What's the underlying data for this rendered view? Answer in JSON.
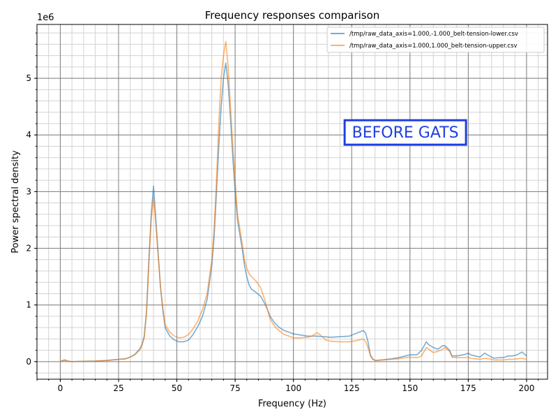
{
  "chart_data": {
    "type": "line",
    "title": "Frequency responses comparison",
    "xlabel": "Frequency (Hz)",
    "ylabel": "Power spectral density",
    "y_offset_label": "1e6",
    "xlim": [
      -10,
      209
    ],
    "ylim": [
      -0.31,
      5.95
    ],
    "y_scale": 1000000,
    "xticks": [
      0,
      25,
      50,
      75,
      100,
      125,
      150,
      175,
      200
    ],
    "yticks": [
      0,
      1,
      2,
      3,
      4,
      5
    ],
    "x_minor_step": 5,
    "y_minor_step": 0.2,
    "grid": true,
    "legend_position": "top-right",
    "annotation": {
      "text": "BEFORE GATS",
      "x": 148,
      "y": 4.05,
      "color": "#1f3fe0"
    },
    "series": [
      {
        "name": "/tmp/raw_data_axis=1.000,-1.000_belt-tension-lower.csv",
        "color": "#1f77b4",
        "x": [
          0,
          1,
          2,
          3,
          5,
          10,
          15,
          20,
          25,
          28,
          30,
          32,
          34,
          35,
          36,
          37,
          38,
          39,
          40,
          41,
          42,
          43,
          44,
          45,
          47,
          49,
          51,
          53,
          55,
          57,
          59,
          61,
          63,
          65,
          66,
          67,
          68,
          69,
          70,
          71,
          72,
          73,
          74,
          75,
          76,
          78,
          79,
          80,
          81,
          82,
          84,
          86,
          88,
          90,
          92,
          94,
          96,
          98,
          100,
          103,
          106,
          110,
          113,
          116,
          120,
          124,
          127,
          130,
          131,
          132,
          133,
          134,
          135,
          138,
          142,
          145,
          148,
          150,
          153,
          155,
          157,
          158,
          160,
          162,
          164,
          165,
          167,
          168,
          170,
          173,
          175,
          176,
          178,
          180,
          182,
          184,
          186,
          188,
          190,
          192,
          194,
          196,
          198,
          200
        ],
        "y": [
          0,
          0.02,
          0.03,
          0.01,
          0,
          0.005,
          0.01,
          0.02,
          0.04,
          0.05,
          0.08,
          0.13,
          0.22,
          0.3,
          0.45,
          0.9,
          1.8,
          2.6,
          3.1,
          2.5,
          1.9,
          1.3,
          0.9,
          0.6,
          0.45,
          0.38,
          0.35,
          0.35,
          0.38,
          0.48,
          0.62,
          0.8,
          1.1,
          1.7,
          2.2,
          3.0,
          3.8,
          4.5,
          5.0,
          5.27,
          4.9,
          4.3,
          3.6,
          3.0,
          2.5,
          2.0,
          1.7,
          1.5,
          1.35,
          1.28,
          1.22,
          1.15,
          1.0,
          0.8,
          0.68,
          0.6,
          0.55,
          0.52,
          0.49,
          0.47,
          0.45,
          0.45,
          0.44,
          0.43,
          0.44,
          0.45,
          0.5,
          0.55,
          0.5,
          0.35,
          0.12,
          0.05,
          0.02,
          0.03,
          0.05,
          0.07,
          0.1,
          0.12,
          0.12,
          0.2,
          0.35,
          0.3,
          0.25,
          0.22,
          0.28,
          0.28,
          0.2,
          0.1,
          0.1,
          0.12,
          0.15,
          0.12,
          0.1,
          0.08,
          0.15,
          0.1,
          0.06,
          0.07,
          0.07,
          0.1,
          0.1,
          0.12,
          0.17,
          0.1
        ]
      },
      {
        "name": "/tmp/raw_data_axis=1.000,1.000_belt-tension-upper.csv",
        "color": "#ff7f0e",
        "x": [
          0,
          1,
          2,
          3,
          5,
          10,
          15,
          20,
          25,
          28,
          30,
          32,
          34,
          35,
          36,
          37,
          38,
          39,
          40,
          41,
          42,
          43,
          44,
          45,
          47,
          49,
          51,
          53,
          55,
          57,
          59,
          61,
          63,
          65,
          66,
          67,
          68,
          69,
          70,
          71,
          72,
          73,
          74,
          75,
          76,
          78,
          79,
          80,
          81,
          82,
          84,
          86,
          88,
          90,
          92,
          94,
          96,
          98,
          100,
          103,
          106,
          108,
          110,
          111,
          112,
          114,
          116,
          120,
          124,
          127,
          130,
          131,
          132,
          133,
          134,
          135,
          138,
          142,
          145,
          148,
          150,
          153,
          155,
          157,
          158,
          160,
          162,
          164,
          165,
          167,
          168,
          170,
          173,
          175,
          176,
          178,
          180,
          182,
          184,
          186,
          188,
          190,
          192,
          194,
          196,
          198,
          200
        ],
        "y": [
          0,
          0.02,
          0.02,
          0.01,
          0,
          0.005,
          0.01,
          0.02,
          0.04,
          0.05,
          0.08,
          0.12,
          0.2,
          0.28,
          0.42,
          0.85,
          1.7,
          2.5,
          2.9,
          2.4,
          1.85,
          1.3,
          0.95,
          0.65,
          0.52,
          0.45,
          0.42,
          0.43,
          0.48,
          0.58,
          0.72,
          0.92,
          1.2,
          1.8,
          2.35,
          3.2,
          4.2,
          5.0,
          5.4,
          5.65,
          5.2,
          4.5,
          3.8,
          3.2,
          2.6,
          2.1,
          1.8,
          1.65,
          1.55,
          1.5,
          1.42,
          1.3,
          1.05,
          0.75,
          0.62,
          0.54,
          0.48,
          0.45,
          0.42,
          0.42,
          0.43,
          0.45,
          0.51,
          0.49,
          0.45,
          0.38,
          0.36,
          0.35,
          0.35,
          0.37,
          0.4,
          0.35,
          0.25,
          0.1,
          0.04,
          0.02,
          0.03,
          0.04,
          0.05,
          0.07,
          0.08,
          0.07,
          0.1,
          0.25,
          0.22,
          0.16,
          0.18,
          0.22,
          0.25,
          0.18,
          0.08,
          0.07,
          0.07,
          0.08,
          0.06,
          0.05,
          0.04,
          0.06,
          0.05,
          0.03,
          0.03,
          0.03,
          0.04,
          0.04,
          0.05,
          0.06,
          0.04
        ]
      }
    ]
  }
}
